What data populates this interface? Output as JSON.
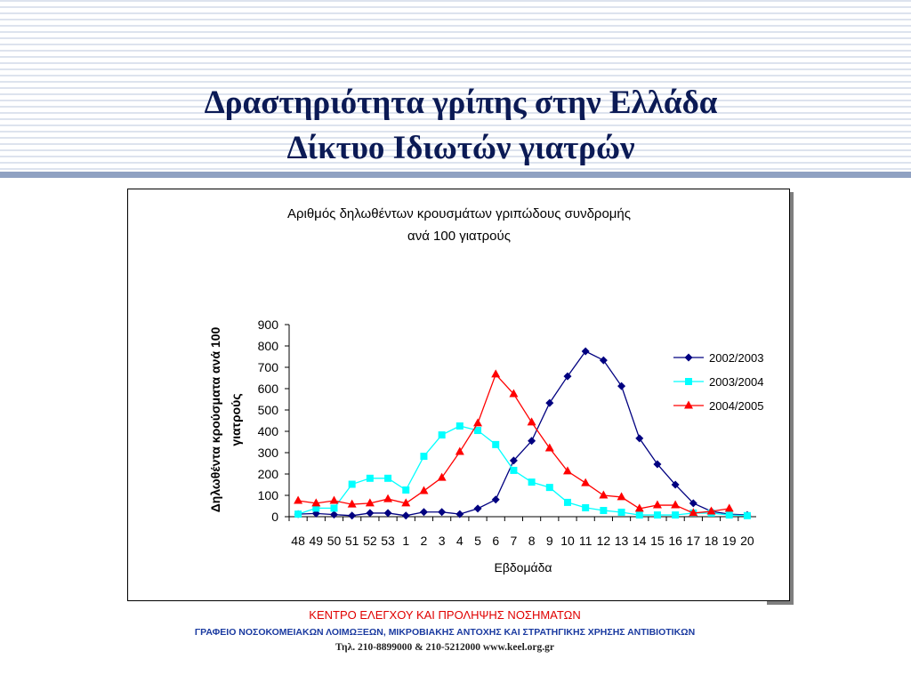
{
  "slide_title": [
    "Δραστηριότητα γρίπης στην Ελλάδα",
    "Δίκτυο Ιδιωτών γιατρών"
  ],
  "chart_data": {
    "type": "line",
    "title": [
      "Αριθμός δηλωθέντων κρουσμάτων γριπώδους συνδρομής",
      "ανά 100 γιατρούς"
    ],
    "x_label": "Εβδομάδα",
    "y_label": [
      "Δηλωθέντα κρούσματα ανά 100",
      "γιατρούς"
    ],
    "categories": [
      "48",
      "49",
      "50",
      "51",
      "52",
      "53",
      "1",
      "2",
      "3",
      "4",
      "5",
      "6",
      "7",
      "8",
      "9",
      "10",
      "11",
      "12",
      "13",
      "14",
      "15",
      "16",
      "17",
      "18",
      "19",
      "20"
    ],
    "ylim": [
      0,
      900
    ],
    "yticks": [
      0,
      100,
      200,
      300,
      400,
      500,
      600,
      700,
      800,
      900
    ],
    "legend": "right",
    "series": [
      {
        "name": "2002/2003",
        "color": "#000080",
        "marker": "diamond",
        "values": [
          12,
          15,
          10,
          5,
          17,
          17,
          5,
          22,
          22,
          12,
          38,
          80,
          263,
          355,
          533,
          658,
          775,
          733,
          612,
          367,
          246,
          150,
          63,
          25,
          12,
          8
        ]
      },
      {
        "name": "2003/2004",
        "color": "#00ffff",
        "marker": "square",
        "values": [
          12,
          40,
          40,
          152,
          180,
          180,
          125,
          283,
          383,
          425,
          404,
          338,
          217,
          162,
          137,
          67,
          42,
          29,
          21,
          8,
          8,
          8,
          17,
          17,
          8,
          5
        ]
      },
      {
        "name": "2004/2005",
        "color": "#ff0000",
        "marker": "triangle",
        "values": [
          75,
          63,
          75,
          58,
          63,
          83,
          63,
          121,
          183,
          304,
          438,
          667,
          575,
          442,
          321,
          213,
          158,
          100,
          92,
          38,
          54,
          54,
          17,
          25,
          38,
          null
        ]
      }
    ]
  },
  "footer": [
    "ΚΕΝΤΡΟ ΕΛΕΓΧΟΥ ΚΑΙ ΠΡΟΛΗΨΗΣ ΝΟΣΗΜΑΤΩΝ",
    "ΓΡΑΦΕΙΟ ΝΟΣΟΚΟΜΕΙΑΚΩΝ ΛΟΙΜΩΞΕΩΝ, ΜΙΚΡΟΒΙΑΚΗΣ ΑΝΤΟΧΗΣ ΚΑΙ ΣΤΡΑΤΗΓΙΚΗΣ ΧΡΗΣΗΣ ΑΝΤΙΒΙΟΤΙΚΩΝ",
    "Τηλ. 210-8899000 & 210-5212000 www.keel.org.gr"
  ]
}
